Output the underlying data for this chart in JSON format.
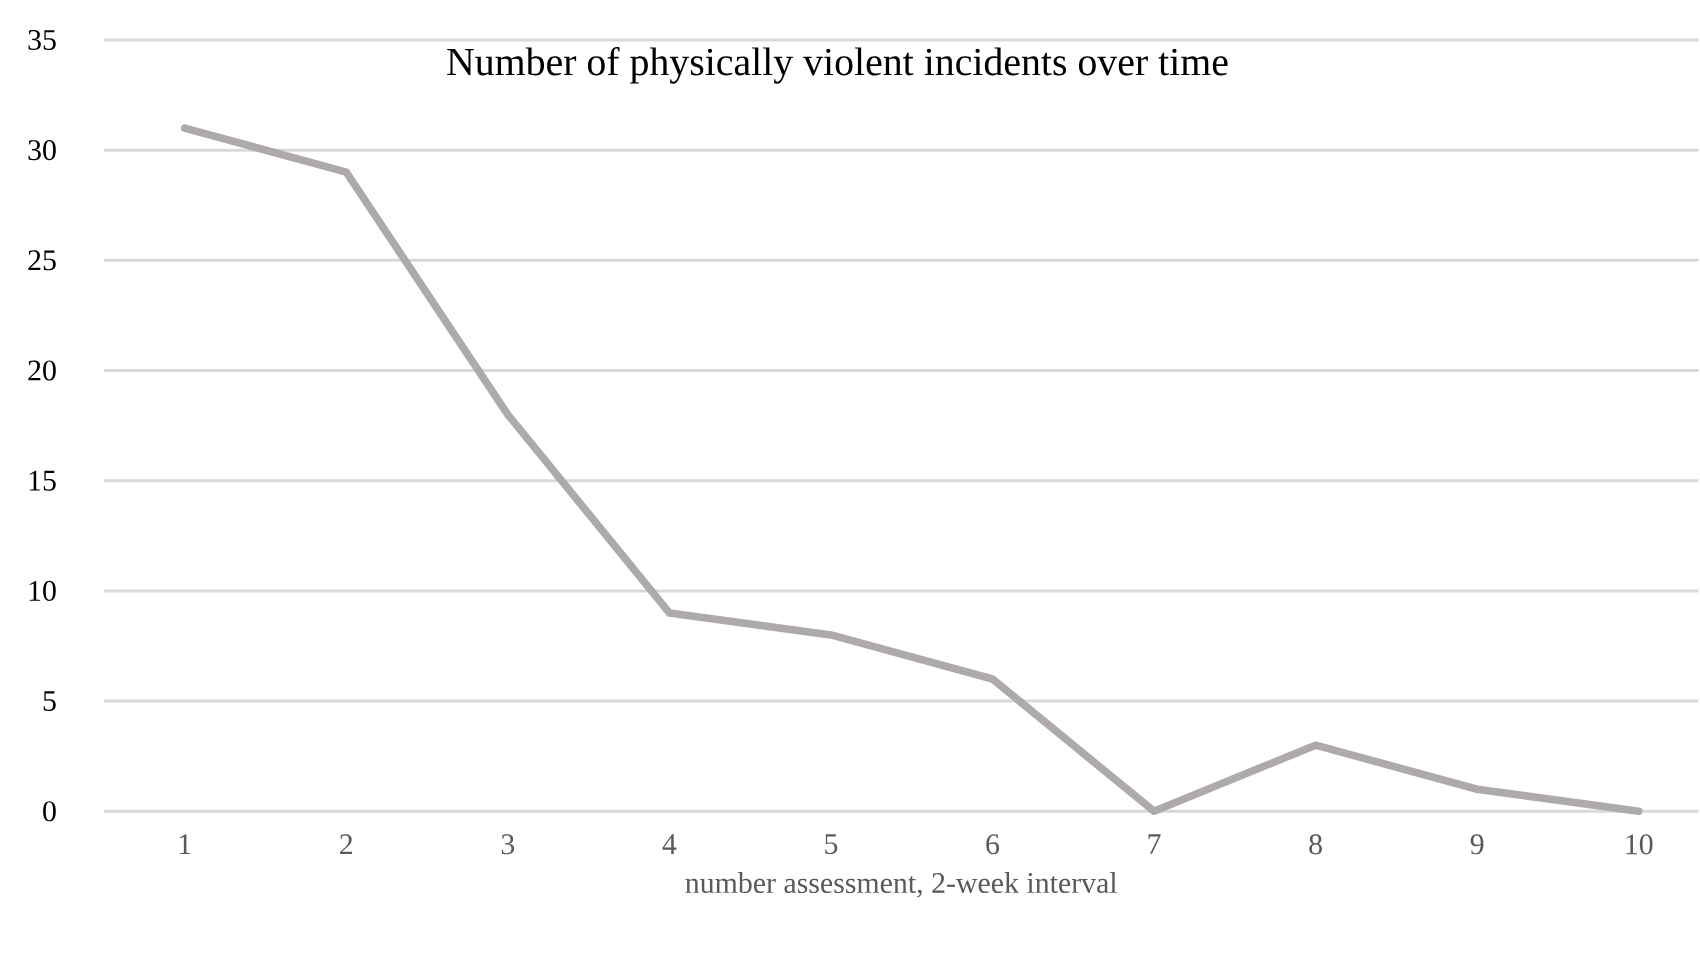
{
  "chart_data": {
    "type": "line",
    "title": "Number of physically violent incidents over time",
    "xlabel": "number assessment, 2-week interval",
    "categories": [
      "1",
      "2",
      "3",
      "4",
      "5",
      "6",
      "7",
      "8",
      "9",
      "10"
    ],
    "series": [
      {
        "color": "#aeaaaa",
        "values": [
          31,
          29,
          18,
          9,
          8,
          6,
          0,
          3,
          1,
          0
        ]
      }
    ],
    "ylim": [
      0,
      35
    ],
    "yticks": [
      0,
      5,
      10,
      15,
      20,
      25,
      30,
      35
    ],
    "grid": "y",
    "marker": "none",
    "line_style": "solid"
  }
}
